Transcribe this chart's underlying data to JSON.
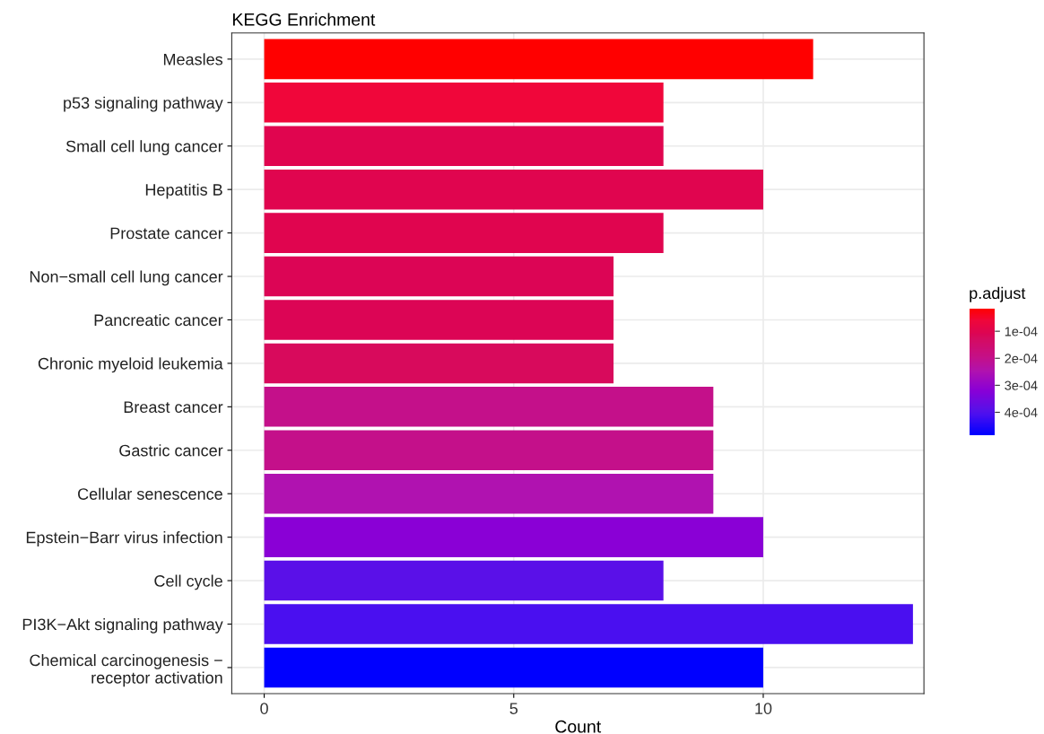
{
  "chart_data": {
    "type": "bar",
    "orientation": "horizontal",
    "title": "KEGG Enrichment",
    "xlabel": "Count",
    "clabel": "p.adjust",
    "categories": [
      "Measles",
      "p53 signaling pathway",
      "Small cell lung cancer",
      "Hepatitis B",
      "Prostate cancer",
      "Non−small cell lung cancer",
      "Pancreatic cancer",
      "Chronic myeloid leukemia",
      "Breast cancer",
      "Gastric cancer",
      "Cellular senescence",
      "Epstein−Barr virus infection",
      "Cell cycle",
      "PI3K−Akt signaling pathway",
      "Chemical carcinogenesis −\nreceptor activation"
    ],
    "values": [
      11,
      8,
      8,
      10,
      8,
      7,
      7,
      7,
      9,
      9,
      9,
      10,
      8,
      13,
      10
    ],
    "cvalues": [
      1.5e-05,
      6e-05,
      0.0001,
      0.0001,
      0.0001,
      0.00011,
      0.00011,
      0.00012,
      0.0002,
      0.0002,
      0.00025,
      0.00032,
      0.00039,
      0.00041,
      0.000485
    ],
    "colors": [
      "#ff0000",
      "#f0063a",
      "#e0054f",
      "#e0054f",
      "#e0054f",
      "#dc0555",
      "#dc0555",
      "#d80a5c",
      "#c4108a",
      "#c4108a",
      "#b012b0",
      "#8a00d6",
      "#5a10e8",
      "#4a0ff0",
      "#0000ff"
    ],
    "clim": [
      1.5e-05,
      0.000485
    ],
    "cticks": [
      {
        "value": 0.0001,
        "label": "1e-04"
      },
      {
        "value": 0.0002,
        "label": "2e-04"
      },
      {
        "value": 0.0003,
        "label": "3e-04"
      },
      {
        "value": 0.0004,
        "label": "4e-04"
      }
    ],
    "xlim": [
      -0.65,
      13.22
    ],
    "xticks": [
      0,
      5,
      10
    ],
    "grid": true
  }
}
